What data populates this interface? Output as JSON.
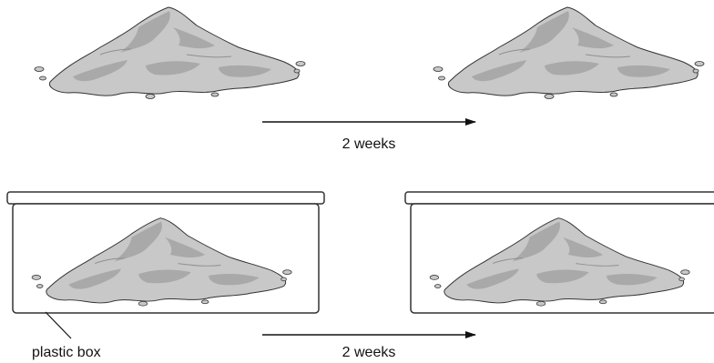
{
  "labels": {
    "top_arrow": "2 weeks",
    "bottom_arrow": "2 weeks",
    "box_callout": "plastic box"
  },
  "colors": {
    "pile_fill": "#c8c8c8",
    "pile_shade": "#a9a9a9",
    "outline": "#333333",
    "background": "#ffffff"
  }
}
